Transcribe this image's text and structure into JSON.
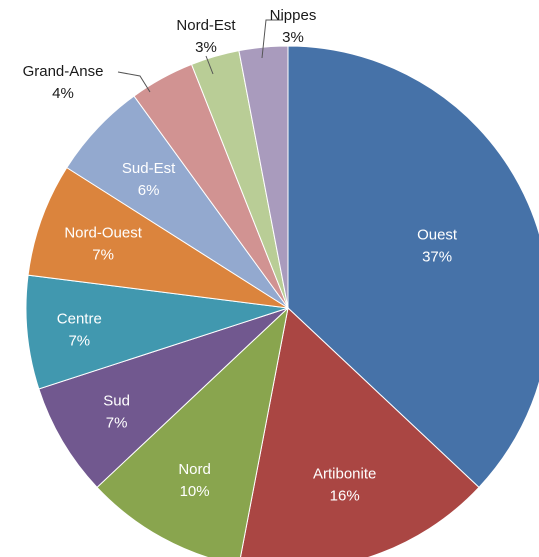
{
  "chart_data": {
    "type": "pie",
    "start_angle_deg": 0,
    "direction": "clockwise",
    "slices": [
      {
        "name": "Ouest",
        "value": 37,
        "label": "37%",
        "color": "#4672A8"
      },
      {
        "name": "Artibonite",
        "value": 16,
        "label": "16%",
        "color": "#AA4643"
      },
      {
        "name": "Nord",
        "value": 10,
        "label": "10%",
        "color": "#89A54E"
      },
      {
        "name": "Sud",
        "value": 7,
        "label": "7%",
        "color": "#71588F"
      },
      {
        "name": "Centre",
        "value": 7,
        "label": "7%",
        "color": "#4198AF"
      },
      {
        "name": "Nord-Ouest",
        "value": 7,
        "label": "7%",
        "color": "#DB843D"
      },
      {
        "name": "Sud-Est",
        "value": 6,
        "label": "6%",
        "color": "#93A9CF"
      },
      {
        "name": "Grand-Anse",
        "value": 4,
        "label": "4%",
        "color": "#D19392"
      },
      {
        "name": "Nord-Est",
        "value": 3,
        "label": "3%",
        "color": "#B9CD96"
      },
      {
        "name": "Nippes",
        "value": 3,
        "label": "3%",
        "color": "#A99BBD"
      }
    ],
    "title": "",
    "legend": "none"
  }
}
